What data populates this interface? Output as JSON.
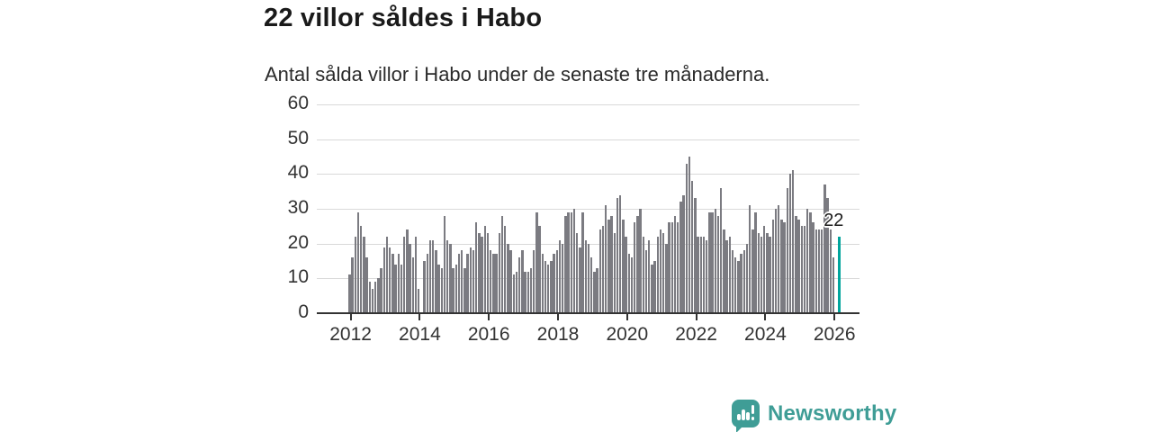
{
  "header": {
    "title": "22 villor såldes i Habo",
    "subtitle": "Antal sålda villor i Habo under de senaste tre månaderna."
  },
  "chart_data": {
    "type": "bar",
    "title": "22 villor såldes i Habo",
    "subtitle": "Antal sålda villor i Habo under de senaste tre månaderna.",
    "x_start_year": 2012,
    "x_frequency": "monthly",
    "x_tick_years": [
      2012,
      2014,
      2016,
      2018,
      2020,
      2022,
      2024,
      2026
    ],
    "ylim": [
      0,
      60
    ],
    "y_ticks": [
      0,
      10,
      20,
      30,
      40,
      50,
      60
    ],
    "grid": "horizontal",
    "legend": "none",
    "values": [
      11,
      16,
      22,
      29,
      25,
      22,
      16,
      9,
      7,
      9,
      10,
      13,
      19,
      22,
      19,
      17,
      14,
      17,
      14,
      22,
      24,
      20,
      16,
      22,
      7,
      null,
      15,
      17,
      21,
      21,
      18,
      14,
      13,
      28,
      21,
      20,
      13,
      14,
      17,
      18,
      13,
      17,
      19,
      18,
      26,
      23,
      22,
      25,
      23,
      18,
      17,
      17,
      23,
      28,
      25,
      20,
      18,
      11,
      12,
      16,
      18,
      12,
      12,
      13,
      18,
      29,
      25,
      17,
      15,
      14,
      15,
      17,
      18,
      21,
      20,
      28,
      29,
      29,
      30,
      23,
      19,
      29,
      21,
      20,
      16,
      12,
      13,
      24,
      25,
      31,
      27,
      28,
      23,
      33,
      34,
      27,
      22,
      17,
      16,
      26,
      28,
      30,
      22,
      18,
      21,
      14,
      15,
      22,
      24,
      23,
      20,
      26,
      26,
      28,
      26,
      32,
      34,
      43,
      45,
      38,
      33,
      22,
      22,
      22,
      21,
      29,
      29,
      30,
      28,
      36,
      24,
      21,
      22,
      18,
      16,
      15,
      17,
      18,
      20,
      31,
      24,
      29,
      23,
      22,
      25,
      23,
      22,
      27,
      30,
      31,
      27,
      26,
      36,
      40,
      41,
      28,
      27,
      25,
      25,
      30,
      29,
      26,
      24,
      24,
      24,
      37,
      33,
      24,
      16,
      null,
      22
    ],
    "highlight_index": 170,
    "highlight_label": "22",
    "colors": {
      "bar": "#7b7b81",
      "highlight": "#00a49c",
      "grid": "#d9d9d9",
      "axis": "#333333",
      "tick_text": "#333333"
    }
  },
  "branding": {
    "name": "Newsworthy",
    "color": "#3f9d96",
    "icon": "newsworthy-speech-bubble-bar-chart-logo"
  }
}
